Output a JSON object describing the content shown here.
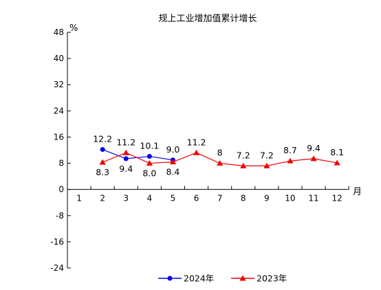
{
  "chart_data": {
    "type": "line",
    "title": "规上工业增加值累计增长",
    "ylabel": "%",
    "xlabel": "月",
    "ylim": [
      -24,
      48
    ],
    "yticks": [
      -24,
      -16,
      -8,
      0,
      8,
      16,
      24,
      32,
      40,
      48
    ],
    "categories": [
      "1",
      "2",
      "3",
      "4",
      "5",
      "6",
      "7",
      "8",
      "9",
      "10",
      "11",
      "12"
    ],
    "series": [
      {
        "name": "2024年",
        "color": "#0000ee",
        "marker": "circle",
        "values": [
          null,
          12.2,
          9.4,
          10.1,
          9.0,
          null,
          null,
          null,
          null,
          null,
          null,
          null
        ],
        "labels": [
          null,
          "12.2",
          "9.4",
          "10.1",
          "9.0",
          null,
          null,
          null,
          null,
          null,
          null,
          null
        ]
      },
      {
        "name": "2023年",
        "color": "#ee0000",
        "marker": "triangle",
        "values": [
          null,
          8.3,
          11.2,
          8.0,
          8.4,
          11.2,
          8,
          7.2,
          7.2,
          8.7,
          9.4,
          8.1
        ],
        "labels": [
          null,
          "8.3",
          "11.2",
          "8.0",
          "8.4",
          "11.2",
          "8",
          "7.2",
          "7.2",
          "8.7",
          "9.4",
          "8.1"
        ]
      }
    ],
    "legend_position": "bottom-center",
    "grid": false
  }
}
